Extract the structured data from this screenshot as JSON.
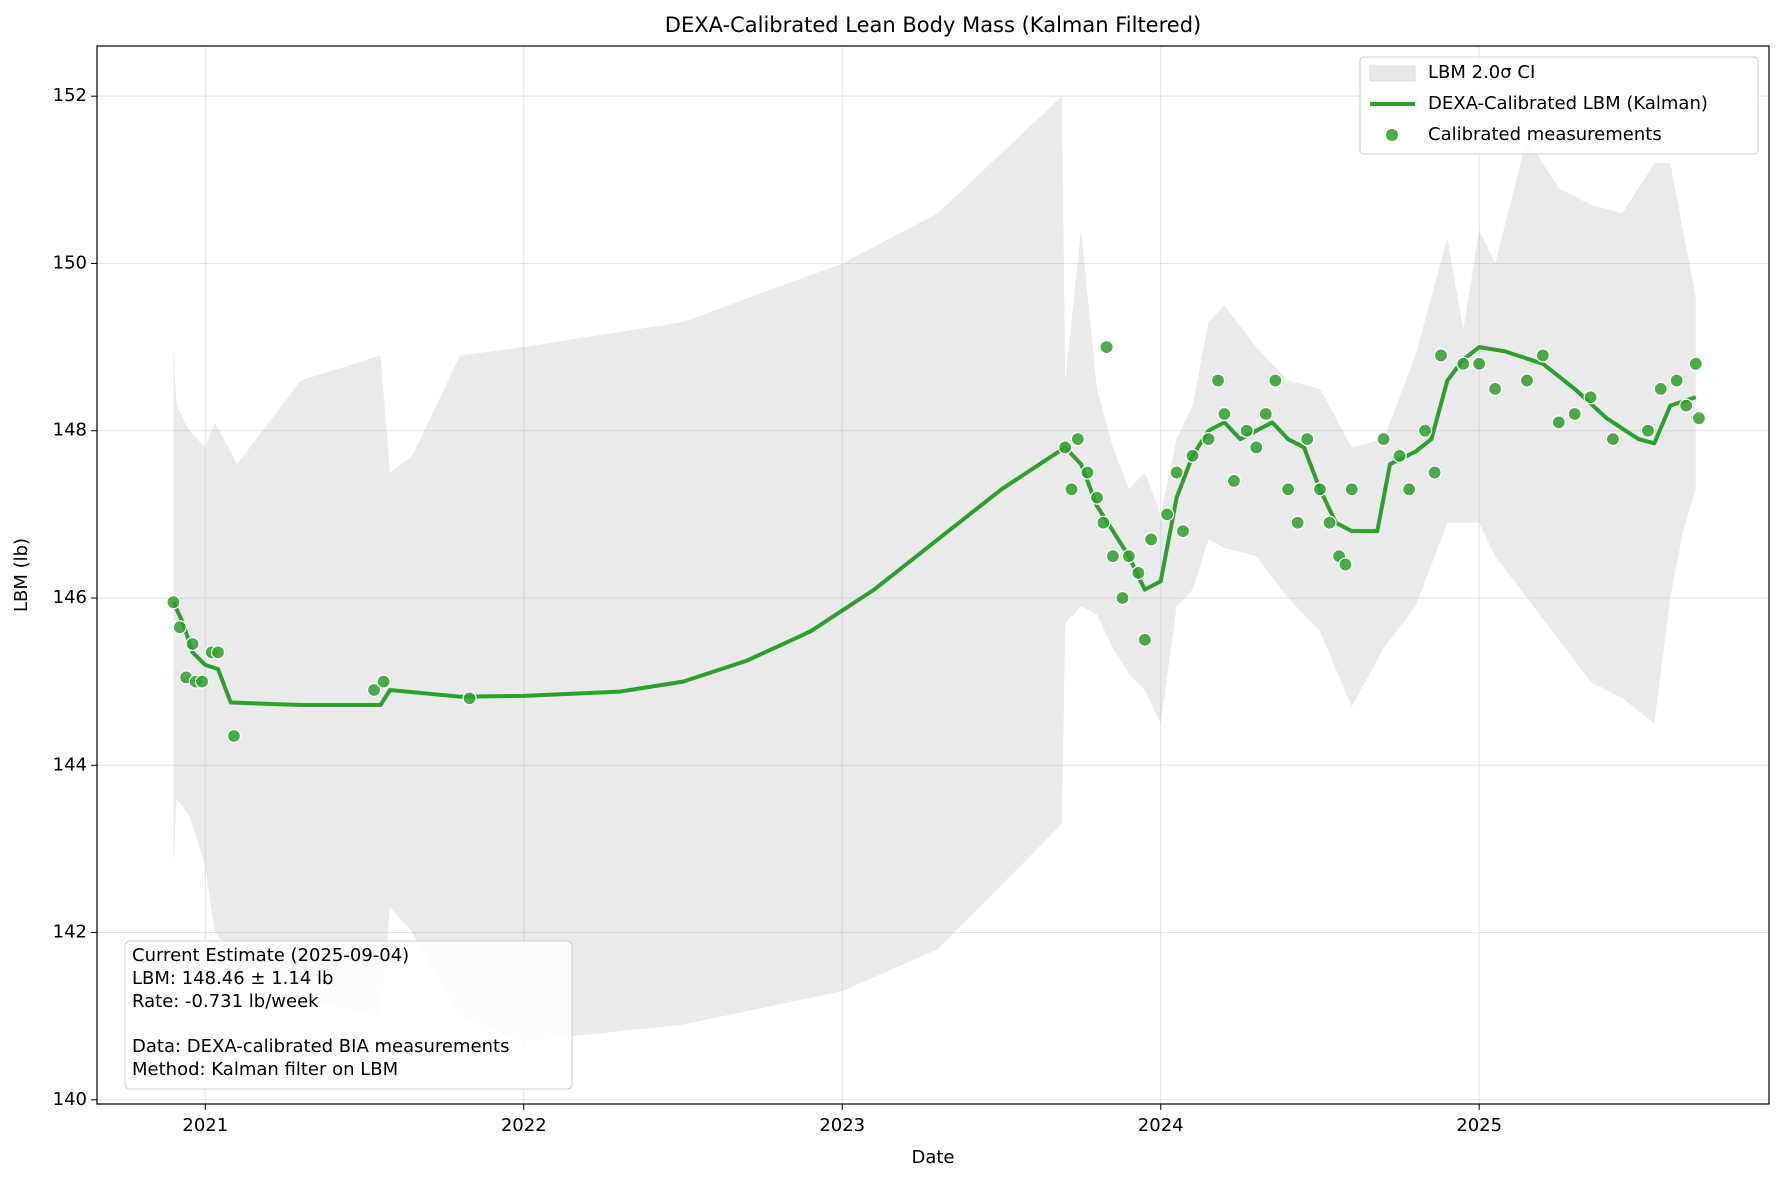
{
  "chart_data": {
    "type": "line",
    "title": "DEXA-Calibrated Lean Body Mass (Kalman Filtered)",
    "x_label": "Date",
    "y_label": "LBM (lb)",
    "xlim": [
      2020.66,
      2025.91
    ],
    "ylim": [
      139.95,
      152.6
    ],
    "xticks": [
      2021,
      2022,
      2023,
      2024,
      2025
    ],
    "yticks": [
      140,
      142,
      144,
      146,
      148,
      150,
      152
    ],
    "grid": true,
    "legend": "upper right",
    "annotation": [
      "Current Estimate (2025-09-04)",
      "LBM: 148.46 ± 1.14 lb",
      "Rate: -0.731 lb/week",
      "Data: DEXA-calibrated BIA measurements",
      "Method: Kalman filter on LBM"
    ],
    "series": [
      {
        "name": "LBM 2.0σ CI",
        "type": "band",
        "color": "#e8e8e8",
        "x": [
          2020.9,
          2020.91,
          2020.95,
          2021.0,
          2021.03,
          2021.1,
          2021.3,
          2021.55,
          2021.58,
          2021.65,
          2021.8,
          2022.0,
          2022.5,
          2023.0,
          2023.3,
          2023.69,
          2023.7,
          2023.75,
          2023.8,
          2023.85,
          2023.9,
          2023.95,
          2024.0,
          2024.05,
          2024.1,
          2024.15,
          2024.2,
          2024.3,
          2024.4,
          2024.5,
          2024.6,
          2024.7,
          2024.8,
          2024.9,
          2024.95,
          2025.0,
          2025.05,
          2025.15,
          2025.25,
          2025.35,
          2025.45,
          2025.55,
          2025.6,
          2025.64,
          2025.68
        ],
        "upper": [
          149.0,
          148.3,
          148.0,
          147.8,
          148.1,
          147.6,
          148.6,
          148.9,
          147.5,
          147.7,
          148.9,
          149.0,
          149.3,
          150.0,
          150.6,
          152.0,
          148.6,
          150.4,
          148.5,
          147.8,
          147.3,
          147.5,
          147.0,
          147.9,
          148.3,
          149.3,
          149.5,
          149.0,
          148.6,
          148.5,
          147.8,
          147.9,
          148.9,
          150.3,
          149.2,
          150.4,
          150.0,
          151.5,
          150.9,
          150.7,
          150.6,
          151.2,
          151.2,
          150.4,
          149.6
        ],
        "lower": [
          142.8,
          143.6,
          143.4,
          142.8,
          142.0,
          141.7,
          141.2,
          141.0,
          142.3,
          142.0,
          141.0,
          140.7,
          140.9,
          141.3,
          141.8,
          143.3,
          145.7,
          145.9,
          145.8,
          145.4,
          145.1,
          144.9,
          144.5,
          145.9,
          146.1,
          146.7,
          146.6,
          146.5,
          146.0,
          145.6,
          144.7,
          145.4,
          145.9,
          146.9,
          146.9,
          146.9,
          146.5,
          146.0,
          145.5,
          145.0,
          144.8,
          144.5,
          146.0,
          146.8,
          147.3
        ]
      },
      {
        "name": "DEXA-Calibrated LBM (Kalman)",
        "type": "line",
        "color": "#2ca02c",
        "x": [
          2020.9,
          2020.93,
          2020.96,
          2021.0,
          2021.04,
          2021.08,
          2021.3,
          2021.55,
          2021.58,
          2021.8,
          2022.0,
          2022.3,
          2022.5,
          2022.7,
          2022.9,
          2023.1,
          2023.3,
          2023.5,
          2023.7,
          2023.75,
          2023.8,
          2023.85,
          2023.9,
          2023.95,
          2024.0,
          2024.05,
          2024.1,
          2024.15,
          2024.2,
          2024.25,
          2024.3,
          2024.35,
          2024.4,
          2024.45,
          2024.5,
          2024.55,
          2024.6,
          2024.68,
          2024.72,
          2024.8,
          2024.85,
          2024.9,
          2024.95,
          2025.0,
          2025.08,
          2025.2,
          2025.3,
          2025.4,
          2025.5,
          2025.55,
          2025.6,
          2025.68
        ],
        "values": [
          145.95,
          145.7,
          145.35,
          145.2,
          145.15,
          144.75,
          144.72,
          144.72,
          144.9,
          144.82,
          144.83,
          144.88,
          145.0,
          145.25,
          145.6,
          146.1,
          146.7,
          147.3,
          147.8,
          147.6,
          147.1,
          146.8,
          146.5,
          146.1,
          146.2,
          147.2,
          147.7,
          148.0,
          148.1,
          147.9,
          148.0,
          148.1,
          147.9,
          147.8,
          147.3,
          146.9,
          146.8,
          146.8,
          147.6,
          147.75,
          147.9,
          148.6,
          148.85,
          149.0,
          148.95,
          148.8,
          148.5,
          148.15,
          147.9,
          147.85,
          148.3,
          148.4
        ]
      },
      {
        "name": "Calibrated measurements",
        "type": "scatter",
        "color": "#2ca02c",
        "x": [
          2020.9,
          2020.92,
          2020.94,
          2020.96,
          2020.97,
          2020.99,
          2021.02,
          2021.04,
          2021.09,
          2021.53,
          2021.56,
          2021.83,
          2023.7,
          2023.72,
          2023.74,
          2023.77,
          2023.8,
          2023.82,
          2023.83,
          2023.85,
          2023.88,
          2023.9,
          2023.93,
          2023.95,
          2023.97,
          2024.02,
          2024.05,
          2024.07,
          2024.1,
          2024.15,
          2024.18,
          2024.2,
          2024.23,
          2024.27,
          2024.3,
          2024.33,
          2024.36,
          2024.4,
          2024.43,
          2024.46,
          2024.5,
          2024.53,
          2024.56,
          2024.58,
          2024.6,
          2024.7,
          2024.75,
          2024.78,
          2024.83,
          2024.86,
          2024.88,
          2024.95,
          2025.0,
          2025.05,
          2025.15,
          2025.2,
          2025.25,
          2025.3,
          2025.35,
          2025.42,
          2025.53,
          2025.57,
          2025.62,
          2025.65,
          2025.68,
          2025.69
        ],
        "values": [
          145.95,
          145.65,
          145.05,
          145.45,
          145.0,
          145.0,
          145.35,
          145.35,
          144.35,
          144.9,
          145.0,
          144.8,
          147.8,
          147.3,
          147.9,
          147.5,
          147.2,
          146.9,
          149.0,
          146.5,
          146.0,
          146.5,
          146.3,
          145.5,
          146.7,
          147.0,
          147.5,
          146.8,
          147.7,
          147.9,
          148.6,
          148.2,
          147.4,
          148.0,
          147.8,
          148.2,
          148.6,
          147.3,
          146.9,
          147.9,
          147.3,
          146.9,
          146.5,
          146.4,
          147.3,
          147.9,
          147.7,
          147.3,
          148.0,
          147.5,
          148.9,
          148.8,
          148.8,
          148.5,
          148.6,
          148.9,
          148.1,
          148.2,
          148.4,
          147.9,
          148.0,
          148.5,
          148.6,
          148.3,
          148.8,
          148.15
        ]
      }
    ]
  }
}
